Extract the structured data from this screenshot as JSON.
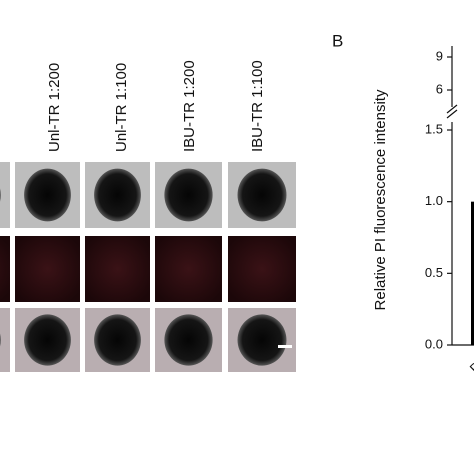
{
  "panel_a": {
    "columns": [
      "Unl-TR 1:200",
      "Unl-TR 1:100",
      "IBU-TR 1:200",
      "IBU-TR 1:100"
    ]
  },
  "panel_b": {
    "label": "B"
  },
  "chart_data": {
    "type": "bar",
    "ylabel": "Relative PI fluorescence intensity",
    "categories": [
      "PB"
    ],
    "values": [
      1.0
    ],
    "color": "#000000",
    "ylim": [
      0,
      1.5
    ],
    "yticks": [
      {
        "value": 0,
        "label": "0.0"
      },
      {
        "value": 0.5,
        "label": "0.5"
      },
      {
        "value": 1,
        "label": "1.0"
      },
      {
        "value": 1.5,
        "label": "1.5"
      }
    ],
    "upper_ylim": [
      5,
      10
    ],
    "upper_yticks": [
      6,
      9
    ]
  }
}
